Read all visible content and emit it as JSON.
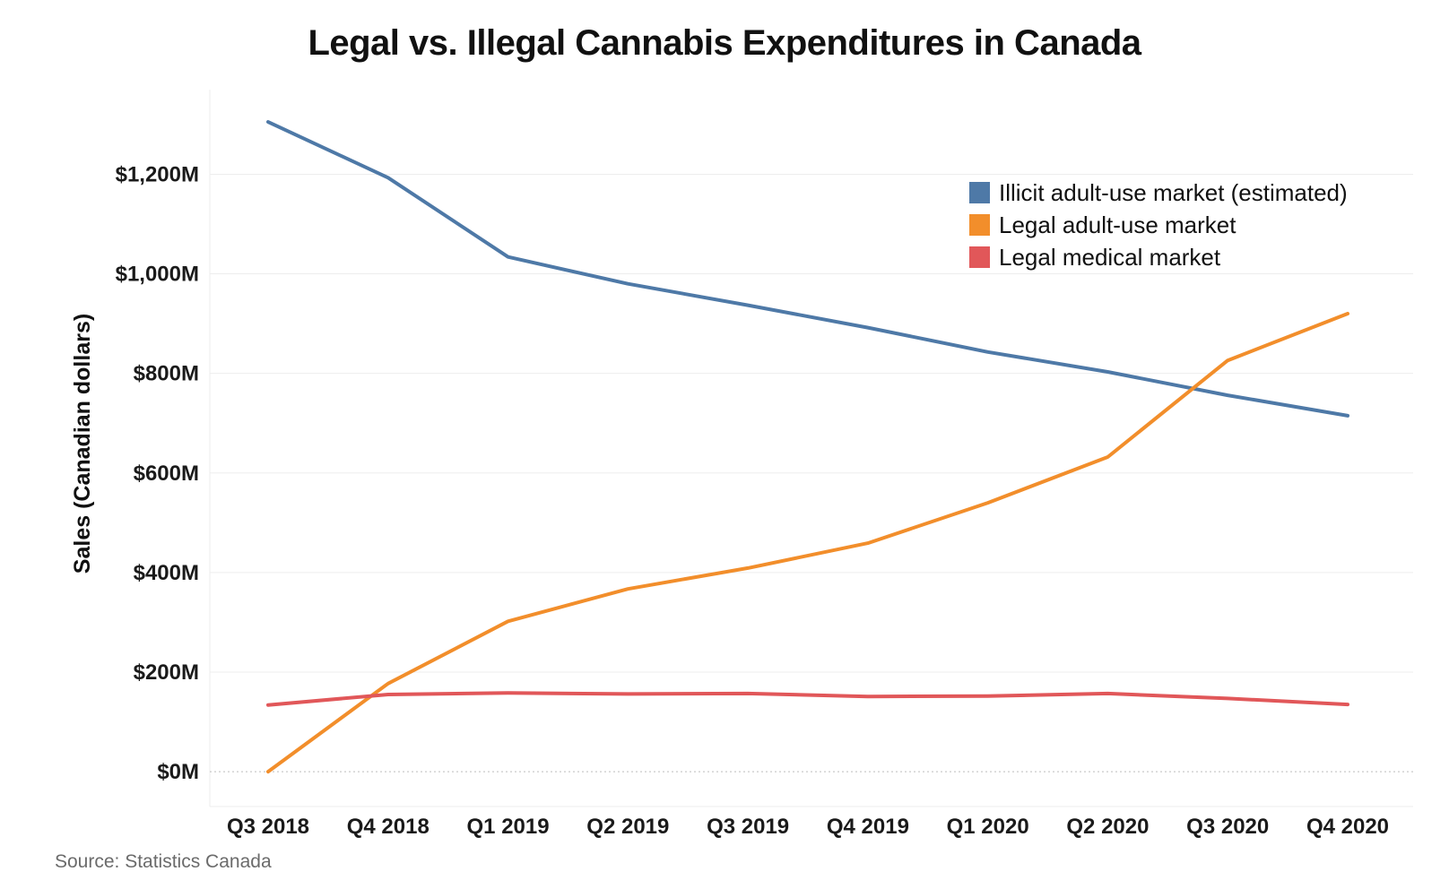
{
  "chart_data": {
    "type": "line",
    "title": "Legal vs. Illegal Cannabis Expenditures in Canada",
    "ylabel": "Sales (Canadian dollars)",
    "xlabel": "",
    "categories": [
      "Q3 2018",
      "Q4 2018",
      "Q1 2019",
      "Q2 2019",
      "Q3 2019",
      "Q4 2019",
      "Q1 2020",
      "Q2 2020",
      "Q3 2020",
      "Q4 2020"
    ],
    "ylim": [
      -70,
      1370
    ],
    "yticks": [
      0,
      200,
      400,
      600,
      800,
      1000,
      1200
    ],
    "ytick_labels": [
      "$0M",
      "$200M",
      "$400M",
      "$600M",
      "$800M",
      "$1,000M",
      "$1,200M"
    ],
    "grid": true,
    "legend_position": "top-right",
    "series": [
      {
        "name": "Illicit adult-use market (estimated)",
        "color": "#4e79a7",
        "values": [
          1305,
          1193,
          1034,
          980,
          937,
          892,
          843,
          803,
          756,
          715
        ]
      },
      {
        "name": "Legal adult-use market",
        "color": "#f28e2b",
        "values": [
          0,
          177,
          302,
          367,
          409,
          459,
          540,
          632,
          826,
          920
        ]
      },
      {
        "name": "Legal medical market",
        "color": "#e15759",
        "values": [
          134,
          155,
          158,
          156,
          157,
          151,
          152,
          157,
          147,
          135
        ]
      }
    ]
  },
  "footer": {
    "source": "Source: Statistics Canada"
  }
}
